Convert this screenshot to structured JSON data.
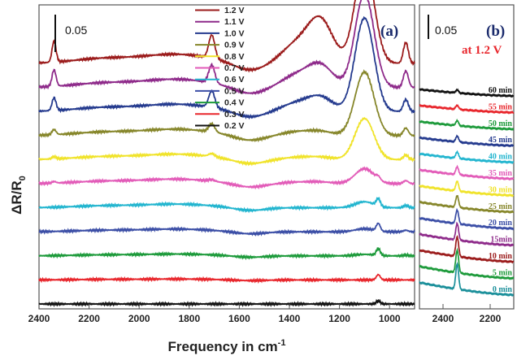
{
  "chart_data": [
    {
      "type": "line",
      "panel_label": "(a)",
      "xlabel": "Frequency in cm",
      "xlabel_sup": "-1",
      "ylabel": "ΔR/R",
      "ylabel_sub": "0",
      "xlim": [
        2400,
        900
      ],
      "xticks": [
        2400,
        2200,
        2000,
        1800,
        1600,
        1400,
        1200,
        1000
      ],
      "scale_bar": "0.05",
      "legend_position": "top-center",
      "features_cm": [
        2340,
        1710,
        1370,
        1275,
        1100,
        1045,
        935
      ],
      "series": [
        {
          "name": "1.2 V",
          "color": "#9b1b1b",
          "offset": 11,
          "amps": [
            0.028,
            0.031,
            0.025,
            0.055,
            0.135,
            0.0,
            0.028
          ]
        },
        {
          "name": "1.1 V",
          "color": "#8e2a8a",
          "offset": 10,
          "amps": [
            0.022,
            0.024,
            0.016,
            0.028,
            0.125,
            0.0,
            0.022
          ]
        },
        {
          "name": "1.0 V",
          "color": "#243a8e",
          "offset": 9,
          "amps": [
            0.017,
            0.022,
            0.011,
            0.018,
            0.125,
            0.0,
            0.016
          ]
        },
        {
          "name": "0.9 V",
          "color": "#86862a",
          "offset": 8,
          "amps": [
            0.007,
            0.011,
            0.005,
            0.005,
            0.085,
            0.0,
            0.01
          ]
        },
        {
          "name": "0.8 V",
          "color": "#f0e32a",
          "offset": 7,
          "amps": [
            0.003,
            0.004,
            0.003,
            0.003,
            0.055,
            0.0,
            0.006
          ]
        },
        {
          "name": "0.7 V",
          "color": "#e25bb8",
          "offset": 6,
          "amps": [
            0.002,
            0.002,
            0.002,
            0.002,
            0.02,
            0.004,
            0.004
          ]
        },
        {
          "name": "0.6 V",
          "color": "#22b5cf",
          "offset": 5,
          "amps": [
            0.0,
            0.0,
            0.0,
            0.0,
            0.008,
            0.01,
            0.003
          ]
        },
        {
          "name": "0.5 V",
          "color": "#3b4ea6",
          "offset": 4,
          "amps": [
            0.0,
            0.0,
            0.0,
            0.0,
            0.004,
            0.01,
            0.002
          ]
        },
        {
          "name": "0.4 V",
          "color": "#1c9a3a",
          "offset": 3,
          "amps": [
            0.0,
            0.0,
            0.0,
            0.0,
            0.002,
            0.009,
            0.001
          ]
        },
        {
          "name": "0.3 V",
          "color": "#e8262c",
          "offset": 2,
          "amps": [
            0.0,
            0.0,
            0.0,
            0.0,
            0.0,
            0.007,
            0.0
          ]
        },
        {
          "name": "0.2 V",
          "color": "#111111",
          "offset": 1,
          "amps": [
            0.0,
            0.0,
            0.0,
            0.0,
            0.0,
            0.004,
            0.0
          ]
        }
      ]
    },
    {
      "type": "line",
      "panel_label": "(b)",
      "condition": "at 1.2 V",
      "xlim": [
        2500,
        2100
      ],
      "xticks": [
        2400,
        2200
      ],
      "scale_bar": "0.05",
      "peak_cm": 2340,
      "series": [
        {
          "name": "60 min",
          "color": "#111111",
          "peak": 0.006
        },
        {
          "name": "55 min",
          "color": "#e8262c",
          "peak": 0.008
        },
        {
          "name": "50 min",
          "color": "#1c9a3a",
          "peak": 0.01
        },
        {
          "name": "45 min",
          "color": "#243a8e",
          "peak": 0.012
        },
        {
          "name": "40 min",
          "color": "#22b5cf",
          "peak": 0.013
        },
        {
          "name": "35 min",
          "color": "#e25bb8",
          "peak": 0.016
        },
        {
          "name": "30 min",
          "color": "#f0e32a",
          "peak": 0.02
        },
        {
          "name": "25 min",
          "color": "#86862a",
          "peak": 0.024
        },
        {
          "name": "20 min",
          "color": "#3b4ea6",
          "peak": 0.028
        },
        {
          "name": "15min",
          "color": "#8e2a8a",
          "peak": 0.034
        },
        {
          "name": "10 min",
          "color": "#9b1b1b",
          "peak": 0.04
        },
        {
          "name": "5 min",
          "color": "#1c9a3a",
          "peak": 0.046
        },
        {
          "name": "0 min",
          "color": "#1a8f9a",
          "peak": 0.052
        }
      ]
    }
  ]
}
